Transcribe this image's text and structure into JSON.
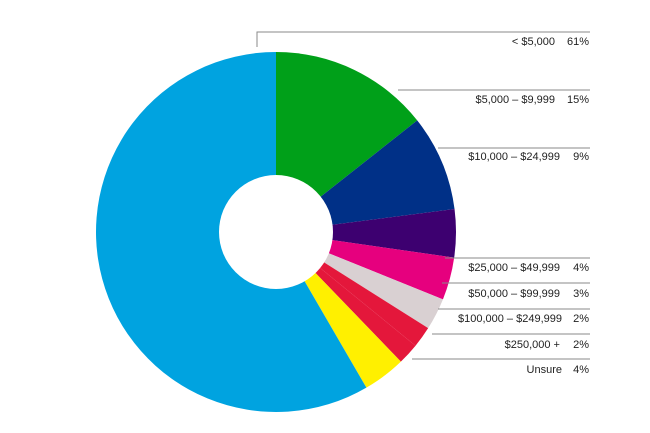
{
  "chart_data": {
    "type": "pie",
    "variant": "donut",
    "title": "",
    "legend_placement": "right",
    "categories": [
      "< $5,000",
      "$5,000 – $9,999",
      "$10,000 – $24,999",
      "$25,000 – $49,999",
      "$50,000 – $99,999",
      "$100,000 – $249,999",
      "$250,000 +",
      "Unsure"
    ],
    "values": [
      61,
      15,
      9,
      4,
      3,
      2,
      2,
      4
    ],
    "value_labels": [
      "61%",
      "15%",
      "9%",
      "4%",
      "3%",
      "2%",
      "2%",
      "4%"
    ],
    "slice_order_clockwise_from_top": [
      1,
      2,
      8,
      3,
      4,
      5,
      6,
      7,
      0
    ],
    "colors": [
      "#00a3e0",
      "#00a019",
      "#003087",
      "#3d0070",
      "#e6007e",
      "#d9d0d2",
      "#e4173b",
      "#fff000",
      "#00a3e0"
    ],
    "slices": [
      {
        "category": "$5,000 – $9,999",
        "value": 15,
        "color": "#00a019"
      },
      {
        "category": "$10,000 – $24,999",
        "value": 9,
        "color": "#003087"
      },
      {
        "category": "(unlabeled)",
        "value": 4.5,
        "color": "#3d0070"
      },
      {
        "category": "$25,000 – $49,999",
        "value": 4,
        "color": "#e6007e"
      },
      {
        "category": "$50,000 – $99,999",
        "value": 3,
        "color": "#d9d0d2"
      },
      {
        "category": "$100,000 – $249,999",
        "value": 2,
        "color": "#e4173b"
      },
      {
        "category": "$250,000 +",
        "value": 2,
        "color": "#e4173b"
      },
      {
        "category": "Unsure",
        "value": 4,
        "color": "#fff000"
      },
      {
        "category": "< $5,000",
        "value": 61,
        "color": "#00a3e0"
      }
    ]
  }
}
